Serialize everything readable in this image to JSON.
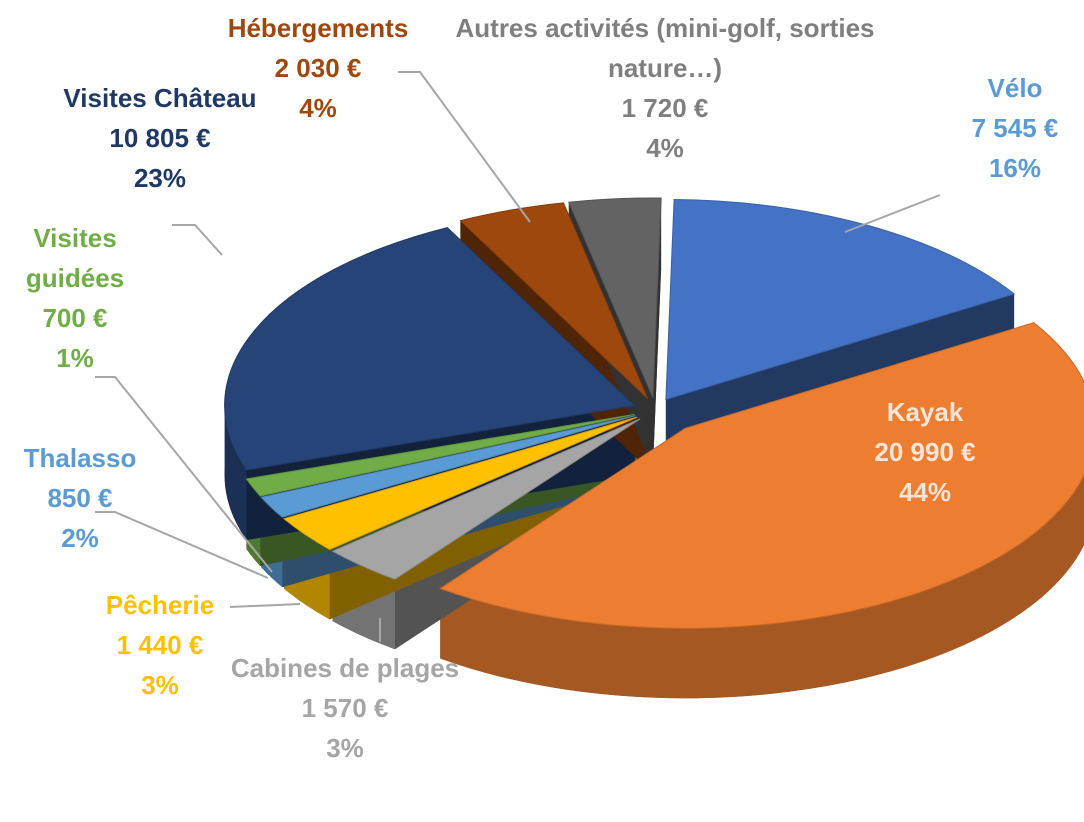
{
  "chart_data": {
    "type": "pie3d",
    "categories": [
      "Vélo",
      "Kayak",
      "Cabines de plages",
      "Pêcherie",
      "Thalasso",
      "Visites guidées",
      "Visites Château",
      "Hébergements",
      "Autres activités (mini-golf, sorties nature…)"
    ],
    "values": [
      7545,
      20990,
      1570,
      1440,
      850,
      700,
      10805,
      2030,
      1720
    ],
    "value_labels": [
      "7 545 €",
      "20 990 €",
      "1 570 €",
      "1 440 €",
      "850 €",
      "700 €",
      "10 805 €",
      "2 030 €",
      "1 720 €"
    ],
    "percents": [
      16,
      44,
      3,
      3,
      2,
      1,
      23,
      4,
      4
    ],
    "percent_labels": [
      "16%",
      "44%",
      "3%",
      "3%",
      "2%",
      "1%",
      "23%",
      "4%",
      "4%"
    ],
    "colors": [
      "#4472c4",
      "#ed7d31",
      "#a5a5a5",
      "#ffc000",
      "#5b9bd5",
      "#70ad47",
      "#264478",
      "#9e480e",
      "#636363"
    ],
    "label_colors": [
      "#5b9bd5",
      "#fbe5d6",
      "#a5a5a5",
      "#ffc000",
      "#5b9bd5",
      "#70ad47",
      "#1f3864",
      "#9e480e",
      "#7f7f7f"
    ]
  }
}
